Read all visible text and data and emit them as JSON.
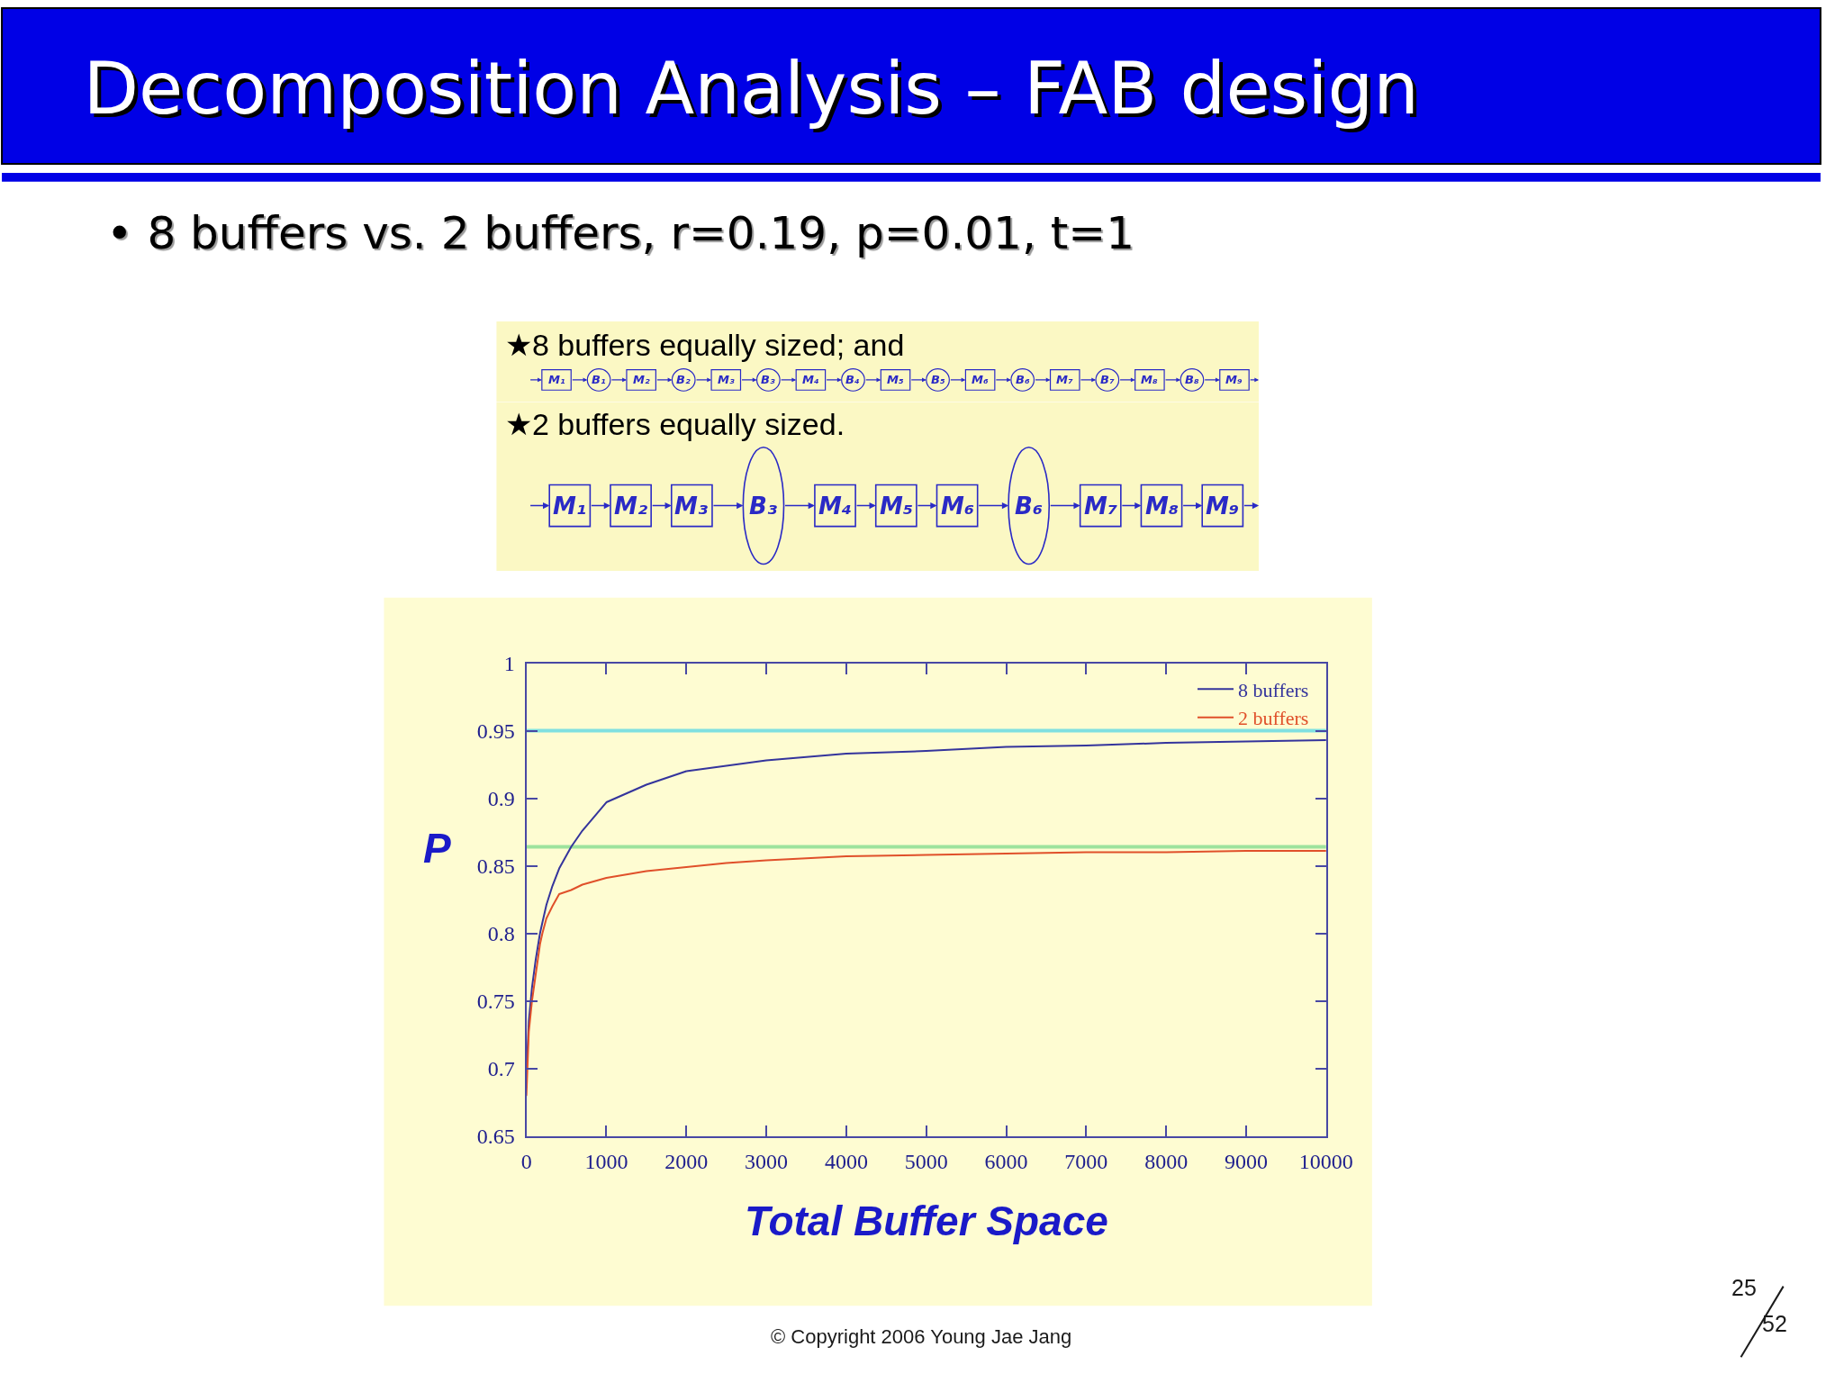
{
  "chart_data": [
    {
      "type": "other",
      "title": "★8 buffers equally sized; and",
      "series": [
        {
          "name": "M₁",
          "marker": "square"
        },
        {
          "name": "B₁",
          "marker": "circle"
        },
        {
          "name": "M₂",
          "marker": "square"
        },
        {
          "name": "B₂",
          "marker": "circle"
        },
        {
          "name": "M₃",
          "marker": "square"
        },
        {
          "name": "B₃",
          "marker": "circle"
        },
        {
          "name": "M₄",
          "marker": "square"
        },
        {
          "name": "B₄",
          "marker": "circle"
        },
        {
          "name": "M₅",
          "marker": "square"
        },
        {
          "name": "B₅",
          "marker": "circle"
        },
        {
          "name": "M₆",
          "marker": "square"
        },
        {
          "name": "B₆",
          "marker": "circle"
        },
        {
          "name": "M₇",
          "marker": "square"
        },
        {
          "name": "B₇",
          "marker": "circle"
        },
        {
          "name": "M₈",
          "marker": "square"
        },
        {
          "name": "B₈",
          "marker": "circle"
        },
        {
          "name": "M₉",
          "marker": "square"
        }
      ]
    },
    {
      "type": "other",
      "title": "★2 buffers equally sized.",
      "series": [
        {
          "name": "M₁",
          "marker": "square"
        },
        {
          "name": "M₂",
          "marker": "square"
        },
        {
          "name": "M₃",
          "marker": "square"
        },
        {
          "name": "B₃",
          "marker": "circle"
        },
        {
          "name": "M₄",
          "marker": "square"
        },
        {
          "name": "M₅",
          "marker": "square"
        },
        {
          "name": "M₆",
          "marker": "square"
        },
        {
          "name": "B₆",
          "marker": "circle"
        },
        {
          "name": "M₇",
          "marker": "square"
        },
        {
          "name": "M₈",
          "marker": "square"
        },
        {
          "name": "M₉",
          "marker": "square"
        }
      ]
    },
    {
      "type": "line",
      "title": "Decomposition Analysis – FAB design",
      "subtitle": "• 8 buffers vs. 2 buffers, r=0.19, p=0.01, t=1",
      "xlabel": "Total Buffer Space",
      "ylabel": "P",
      "x": [
        0,
        30,
        70,
        115,
        170,
        200,
        250,
        325,
        410,
        560,
        700,
        1000,
        1500,
        2000,
        2500,
        3000,
        4000,
        5000,
        6000,
        7000,
        8000,
        9000,
        10000
      ],
      "series": [
        {
          "name": "8 buffers",
          "color": "#34349c",
          "values": [
            0.695,
            0.735,
            0.76,
            0.78,
            0.8,
            0.808,
            0.821,
            0.835,
            0.848,
            0.864,
            0.876,
            0.897,
            0.91,
            0.92,
            0.924,
            0.928,
            0.933,
            0.935,
            0.938,
            0.939,
            0.941,
            0.942,
            0.943
          ]
        },
        {
          "name": "2 buffers",
          "color": "#e0502a",
          "values": [
            0.68,
            0.727,
            0.75,
            0.769,
            0.792,
            0.8,
            0.811,
            0.82,
            0.829,
            0.832,
            0.836,
            0.841,
            0.846,
            0.849,
            0.852,
            0.854,
            0.857,
            0.858,
            0.859,
            0.86,
            0.86,
            0.861,
            0.861
          ]
        }
      ],
      "xlim": [
        0,
        10000
      ],
      "ylim": [
        0.65,
        1
      ],
      "xticks": [
        0,
        1000,
        2000,
        3000,
        4000,
        5000,
        6000,
        7000,
        8000,
        9000,
        10000
      ],
      "yticks": [
        0.65,
        0.7,
        0.75,
        0.8,
        0.85,
        0.9,
        0.95,
        1
      ],
      "ref_lines": [
        {
          "axis": "y",
          "value": 0.95,
          "color": "#80e0e0"
        },
        {
          "axis": "y",
          "value": 0.864,
          "color": "#9de39d"
        }
      ],
      "legend": "top right",
      "annotations": [
        "© Copyright 2006 Young Jae Jang",
        "25",
        "52"
      ]
    }
  ]
}
